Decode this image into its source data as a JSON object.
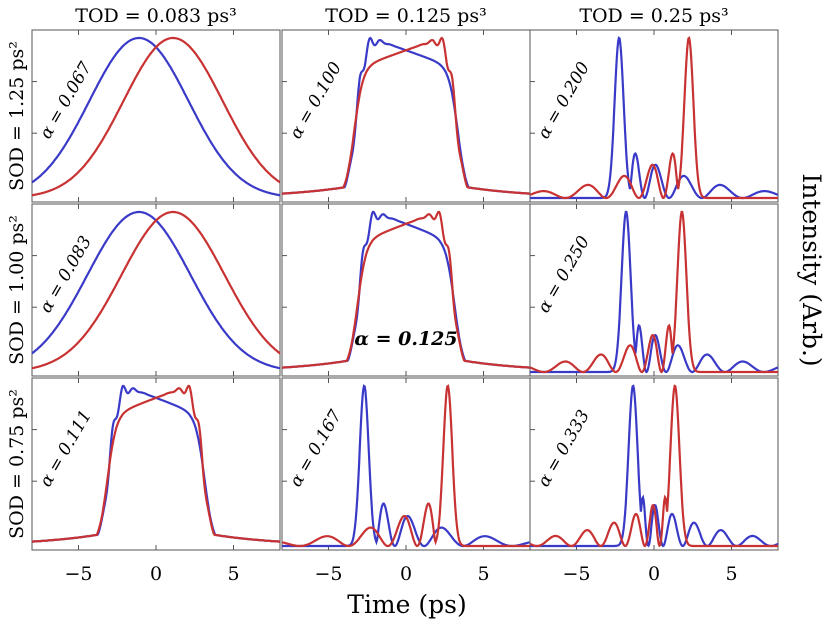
{
  "figure": {
    "x_axis_label": "Time (ps)",
    "y_axis_label": "Intensity (Arb.)",
    "highlight_label": "α = 0.125"
  },
  "chart_data": {
    "type": "line",
    "title": "",
    "xlabel": "Time (ps)",
    "ylabel": "Intensity (Arb.)",
    "xlim": [
      -8,
      8
    ],
    "xticks": [
      -5,
      0,
      5
    ],
    "xtick_labels": [
      "−5",
      "0",
      "5"
    ],
    "grid": false,
    "legend": "none",
    "series_colors": {
      "blue": "#3a3ac8",
      "red": "#c83232"
    },
    "column_labels": [
      "TOD = 0.083 ps³",
      "TOD = 0.125 ps³",
      "TOD = 0.25 ps³"
    ],
    "row_labels": [
      "SOD = 1.25 ps²",
      "SOD = 1.00 ps²",
      "SOD = 0.75 ps²"
    ],
    "panels": [
      {
        "row": 0,
        "col": 0,
        "label": "α = 0.067",
        "alpha": 0.067
      },
      {
        "row": 0,
        "col": 1,
        "label": "α = 0.100",
        "alpha": 0.1
      },
      {
        "row": 0,
        "col": 2,
        "label": "α = 0.200",
        "alpha": 0.2
      },
      {
        "row": 1,
        "col": 0,
        "label": "α = 0.083",
        "alpha": 0.083
      },
      {
        "row": 1,
        "col": 1,
        "label": "",
        "alpha": 0.125
      },
      {
        "row": 1,
        "col": 2,
        "label": "α = 0.250",
        "alpha": 0.25
      },
      {
        "row": 2,
        "col": 0,
        "label": "α = 0.111",
        "alpha": 0.111
      },
      {
        "row": 2,
        "col": 1,
        "label": "α = 0.167",
        "alpha": 0.167
      },
      {
        "row": 2,
        "col": 2,
        "label": "α = 0.333",
        "alpha": 0.333
      }
    ]
  }
}
